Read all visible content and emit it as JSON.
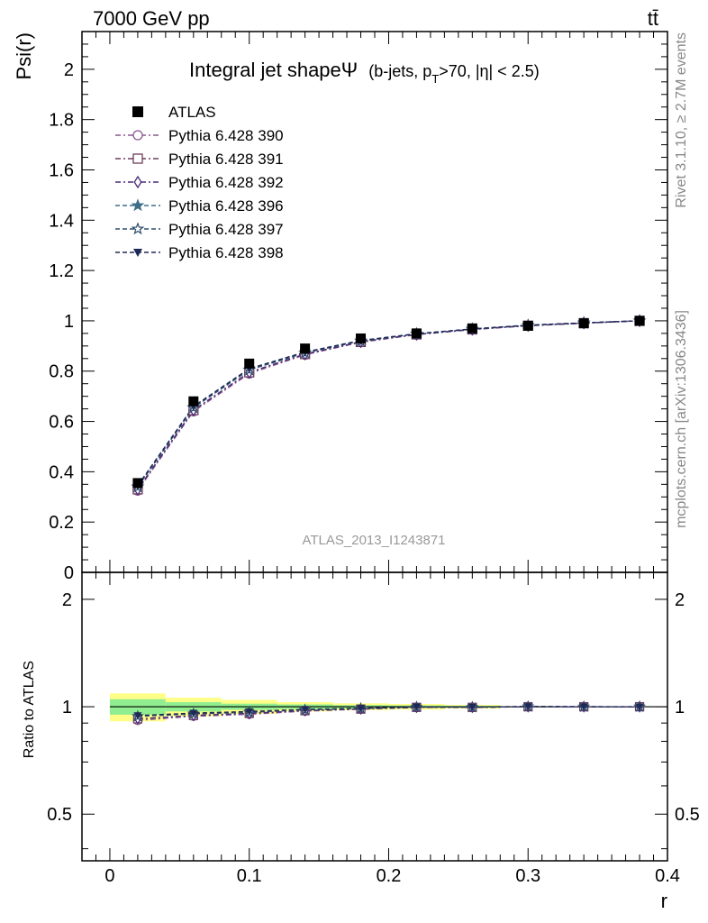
{
  "header": {
    "left": "7000 GeV pp",
    "right": "tt̄"
  },
  "side_text": {
    "rivet": "Rivet 3.1.10, ≥ 2.7M events",
    "mcplots": "mcplots.cern.ch [arXiv:1306.3436]"
  },
  "chart_data": [
    {
      "type": "line",
      "title_main": "Integral jet shapeΨ",
      "title_sub_prefix": "(b-jets, p",
      "title_sub_subscript": "T",
      "title_sub_suffix": ">70, |η| < 2.5)",
      "ylabel": "Psi(r)",
      "watermark": "ATLAS_2013_I1243871",
      "xlim": [
        -0.02,
        0.4
      ],
      "ylim": [
        0,
        2.15
      ],
      "yticks": [
        0,
        0.2,
        0.4,
        0.6,
        0.8,
        1,
        1.2,
        1.4,
        1.6,
        1.8,
        2
      ],
      "ytick_labels": [
        "0",
        "0.2",
        "0.4",
        "0.6",
        "0.8",
        "1",
        "1.2",
        "1.4",
        "1.6",
        "1.8",
        "2"
      ],
      "x": [
        0.02,
        0.06,
        0.1,
        0.14,
        0.18,
        0.22,
        0.26,
        0.3,
        0.34,
        0.38
      ],
      "data": {
        "name": "ATLAS",
        "values": [
          0.355,
          0.68,
          0.83,
          0.89,
          0.93,
          0.95,
          0.97,
          0.98,
          0.99,
          1.0
        ]
      },
      "series": [
        {
          "name": "Pythia 6.428 390",
          "color": "#8a5a8e",
          "marker": "circle-open",
          "dash": "dashdot",
          "values": [
            0.325,
            0.64,
            0.79,
            0.865,
            0.915,
            0.945,
            0.965,
            0.98,
            0.99,
            1.0
          ]
        },
        {
          "name": "Pythia 6.428 391",
          "color": "#6e3d5c",
          "marker": "square-open",
          "dash": "dashdot",
          "values": [
            0.33,
            0.645,
            0.795,
            0.868,
            0.916,
            0.946,
            0.966,
            0.981,
            0.991,
            1.0
          ]
        },
        {
          "name": "Pythia 6.428 392",
          "color": "#4b2a78",
          "marker": "diamond-open",
          "dash": "dashdot",
          "values": [
            0.33,
            0.645,
            0.795,
            0.868,
            0.917,
            0.946,
            0.966,
            0.981,
            0.991,
            1.0
          ]
        },
        {
          "name": "Pythia 6.428 396",
          "color": "#3d6e8a",
          "marker": "star-filled",
          "dash": "dashed",
          "values": [
            0.34,
            0.655,
            0.805,
            0.873,
            0.92,
            0.948,
            0.967,
            0.982,
            0.992,
            1.0
          ]
        },
        {
          "name": "Pythia 6.428 397",
          "color": "#2e4f6e",
          "marker": "star-open",
          "dash": "dashed",
          "values": [
            0.34,
            0.655,
            0.805,
            0.873,
            0.92,
            0.948,
            0.967,
            0.982,
            0.992,
            1.0
          ]
        },
        {
          "name": "Pythia 6.428 398",
          "color": "#1e2a55",
          "marker": "triangle-down-filled",
          "dash": "dashed",
          "values": [
            0.345,
            0.66,
            0.81,
            0.876,
            0.922,
            0.949,
            0.968,
            0.983,
            0.992,
            1.0
          ]
        }
      ]
    },
    {
      "type": "line",
      "ylabel": "Ratio to ATLAS",
      "xlabel": "r",
      "xlim": [
        -0.02,
        0.4
      ],
      "xticks": [
        0,
        0.1,
        0.2,
        0.3,
        0.4
      ],
      "xtick_labels": [
        "0",
        "0.1",
        "0.2",
        "0.3",
        "0.4"
      ],
      "ylim": [
        0.37,
        2.38
      ],
      "yticks": [
        0.5,
        1,
        2
      ],
      "ytick_labels": [
        "0.5",
        "1",
        "2"
      ],
      "bands": {
        "bins": [
          [
            0.0,
            0.04
          ],
          [
            0.04,
            0.08
          ],
          [
            0.08,
            0.12
          ],
          [
            0.12,
            0.16
          ],
          [
            0.16,
            0.2
          ],
          [
            0.2,
            0.24
          ],
          [
            0.24,
            0.28
          ],
          [
            0.28,
            0.32
          ],
          [
            0.32,
            0.36
          ],
          [
            0.36,
            0.4
          ]
        ],
        "stat_color": "#90ee90",
        "total_color": "#ffff88",
        "stat_half": [
          0.05,
          0.03,
          0.02,
          0.015,
          0.01,
          0.008,
          0.006,
          0.003,
          0.002,
          0.0
        ],
        "total_half": [
          0.09,
          0.06,
          0.045,
          0.03,
          0.022,
          0.018,
          0.012,
          0.004,
          0.002,
          0.0
        ]
      },
      "series_ratio": [
        [
          0.915,
          0.94,
          0.952,
          0.972,
          0.984,
          0.995,
          0.995,
          1.0,
          1.0,
          1.0
        ],
        [
          0.925,
          0.945,
          0.958,
          0.975,
          0.985,
          0.996,
          0.996,
          1.0,
          1.0,
          1.0
        ],
        [
          0.925,
          0.945,
          0.958,
          0.975,
          0.986,
          0.996,
          0.996,
          1.0,
          1.0,
          1.0
        ],
        [
          0.94,
          0.955,
          0.965,
          0.98,
          0.989,
          0.998,
          0.997,
          1.001,
          1.0,
          1.0
        ],
        [
          0.94,
          0.955,
          0.965,
          0.98,
          0.989,
          0.998,
          0.997,
          1.001,
          1.0,
          1.0
        ],
        [
          0.945,
          0.96,
          0.97,
          0.983,
          0.99,
          0.999,
          0.998,
          1.002,
          1.001,
          1.0
        ]
      ]
    }
  ]
}
